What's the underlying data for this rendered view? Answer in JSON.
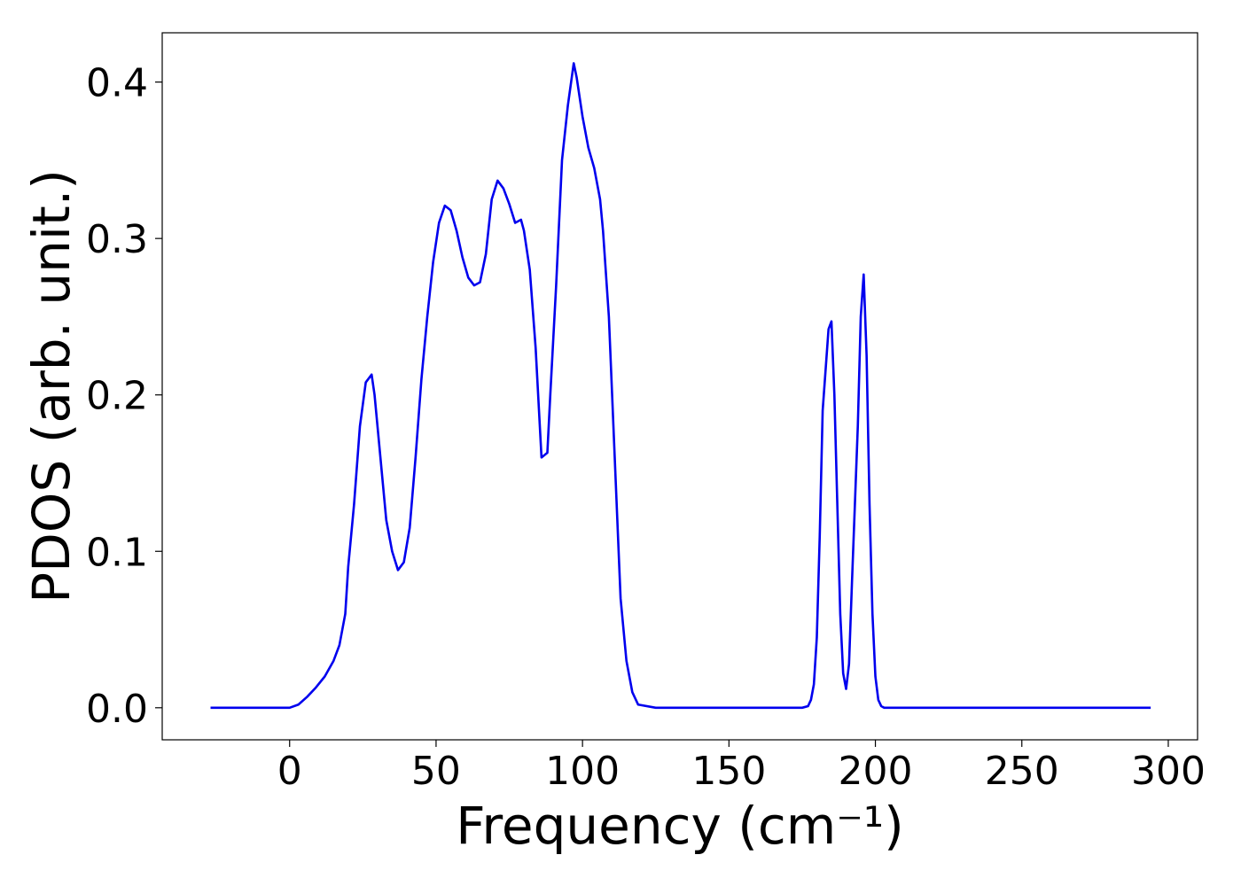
{
  "chart_data": {
    "type": "line",
    "xlabel": "Frequency (cm⁻¹)",
    "ylabel": "PDOS (arb. unit.)",
    "xlim": [
      -43.5,
      310
    ],
    "ylim": [
      -0.0205,
      0.4315
    ],
    "x_ticks": [
      0,
      50,
      100,
      150,
      200,
      250,
      300
    ],
    "x_tick_labels": [
      "0",
      "50",
      "100",
      "150",
      "200",
      "250",
      "300"
    ],
    "y_ticks": [
      0.0,
      0.1,
      0.2,
      0.3,
      0.4
    ],
    "y_tick_labels": [
      "0.0",
      "0.1",
      "0.2",
      "0.3",
      "0.4"
    ],
    "grid": false,
    "legend": "none",
    "colors": {
      "line": "#0000ee",
      "axes": "#000000",
      "background": "#ffffff"
    },
    "series": [
      {
        "color": "#0000ee",
        "x": [
          -27,
          -20,
          -10,
          0,
          3,
          6,
          9,
          12,
          15,
          17,
          19,
          20,
          22,
          24,
          26,
          28,
          29,
          31,
          33,
          35,
          37,
          39,
          41,
          43,
          45,
          47,
          49,
          51,
          53,
          55,
          57,
          59,
          61,
          63,
          65,
          67,
          69,
          71,
          73,
          75,
          77,
          79,
          80,
          82,
          84,
          86,
          88,
          89,
          91,
          93,
          95,
          97,
          98,
          100,
          102,
          104,
          106,
          107,
          109,
          111,
          113,
          115,
          117,
          119,
          125,
          150,
          172,
          175,
          177,
          178,
          179,
          180,
          181,
          182,
          184,
          185,
          186,
          187,
          188,
          189,
          190,
          191,
          192,
          194,
          195,
          196,
          197,
          198,
          199,
          200,
          201,
          202,
          203,
          204,
          205,
          206,
          207,
          208,
          209,
          210,
          211,
          213,
          215,
          220,
          240,
          243,
          245,
          247,
          248,
          249,
          250,
          251,
          252,
          253,
          254,
          255,
          256,
          257,
          258,
          259,
          260,
          261,
          262,
          263,
          264,
          265,
          266,
          267,
          268,
          269,
          270,
          271,
          272,
          273,
          275,
          280,
          294
        ],
        "y": [
          0.0,
          0.0,
          0.0,
          0.0,
          0.002,
          0.007,
          0.013,
          0.02,
          0.03,
          0.04,
          0.06,
          0.09,
          0.13,
          0.18,
          0.208,
          0.213,
          0.2,
          0.16,
          0.12,
          0.1,
          0.088,
          0.093,
          0.115,
          0.16,
          0.21,
          0.25,
          0.285,
          0.31,
          0.321,
          0.318,
          0.305,
          0.288,
          0.275,
          0.27,
          0.272,
          0.29,
          0.325,
          0.337,
          0.332,
          0.322,
          0.31,
          0.312,
          0.305,
          0.28,
          0.23,
          0.16,
          0.163,
          0.2,
          0.27,
          0.35,
          0.385,
          0.412,
          0.403,
          0.378,
          0.358,
          0.345,
          0.325,
          0.305,
          0.25,
          0.16,
          0.07,
          0.03,
          0.01,
          0.002,
          0.0,
          0.0,
          0.0,
          0.0,
          0.001,
          0.005,
          0.015,
          0.045,
          0.11,
          0.19,
          0.242,
          0.247,
          0.2,
          0.13,
          0.06,
          0.022,
          0.012,
          0.028,
          0.08,
          0.18,
          0.25,
          0.277,
          0.225,
          0.13,
          0.06,
          0.02,
          0.005,
          0.001,
          0.0,
          0.0,
          0.0,
          0.0,
          0.0,
          0.0,
          0.0,
          0.0,
          0.0,
          0.0,
          0.0,
          0.0,
          0.0,
          0.0,
          0.0,
          0.0,
          0.0,
          0.0,
          0.0,
          0.0,
          0.0,
          0.0,
          0.0,
          0.0,
          0.0,
          0.0,
          0.0,
          0.0,
          0.0,
          0.0,
          0.0,
          0.0,
          0.0,
          0.0,
          0.0,
          0.0,
          0.0,
          0.0,
          0.0,
          0.0,
          0.0,
          0.0,
          0.0,
          0.0,
          0.0
        ]
      }
    ]
  }
}
